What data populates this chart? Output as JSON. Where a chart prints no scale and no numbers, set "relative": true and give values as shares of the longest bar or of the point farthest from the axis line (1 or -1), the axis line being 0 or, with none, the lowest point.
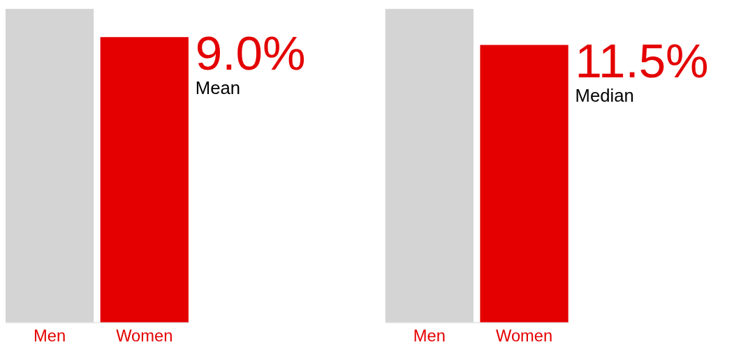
{
  "chart_data": [
    {
      "type": "bar",
      "relative": true,
      "categories": [
        "Men",
        "Women"
      ],
      "values": [
        1,
        0.91
      ],
      "colors": [
        "#d3d4d3",
        "#e40000"
      ],
      "annotations": [
        "9.0%",
        "Mean"
      ]
    },
    {
      "type": "bar",
      "relative": true,
      "categories": [
        "Men",
        "Women"
      ],
      "values": [
        1,
        0.885
      ],
      "colors": [
        "#d3d4d3",
        "#e40000"
      ],
      "annotations": [
        "11.5%",
        "Median"
      ]
    }
  ]
}
